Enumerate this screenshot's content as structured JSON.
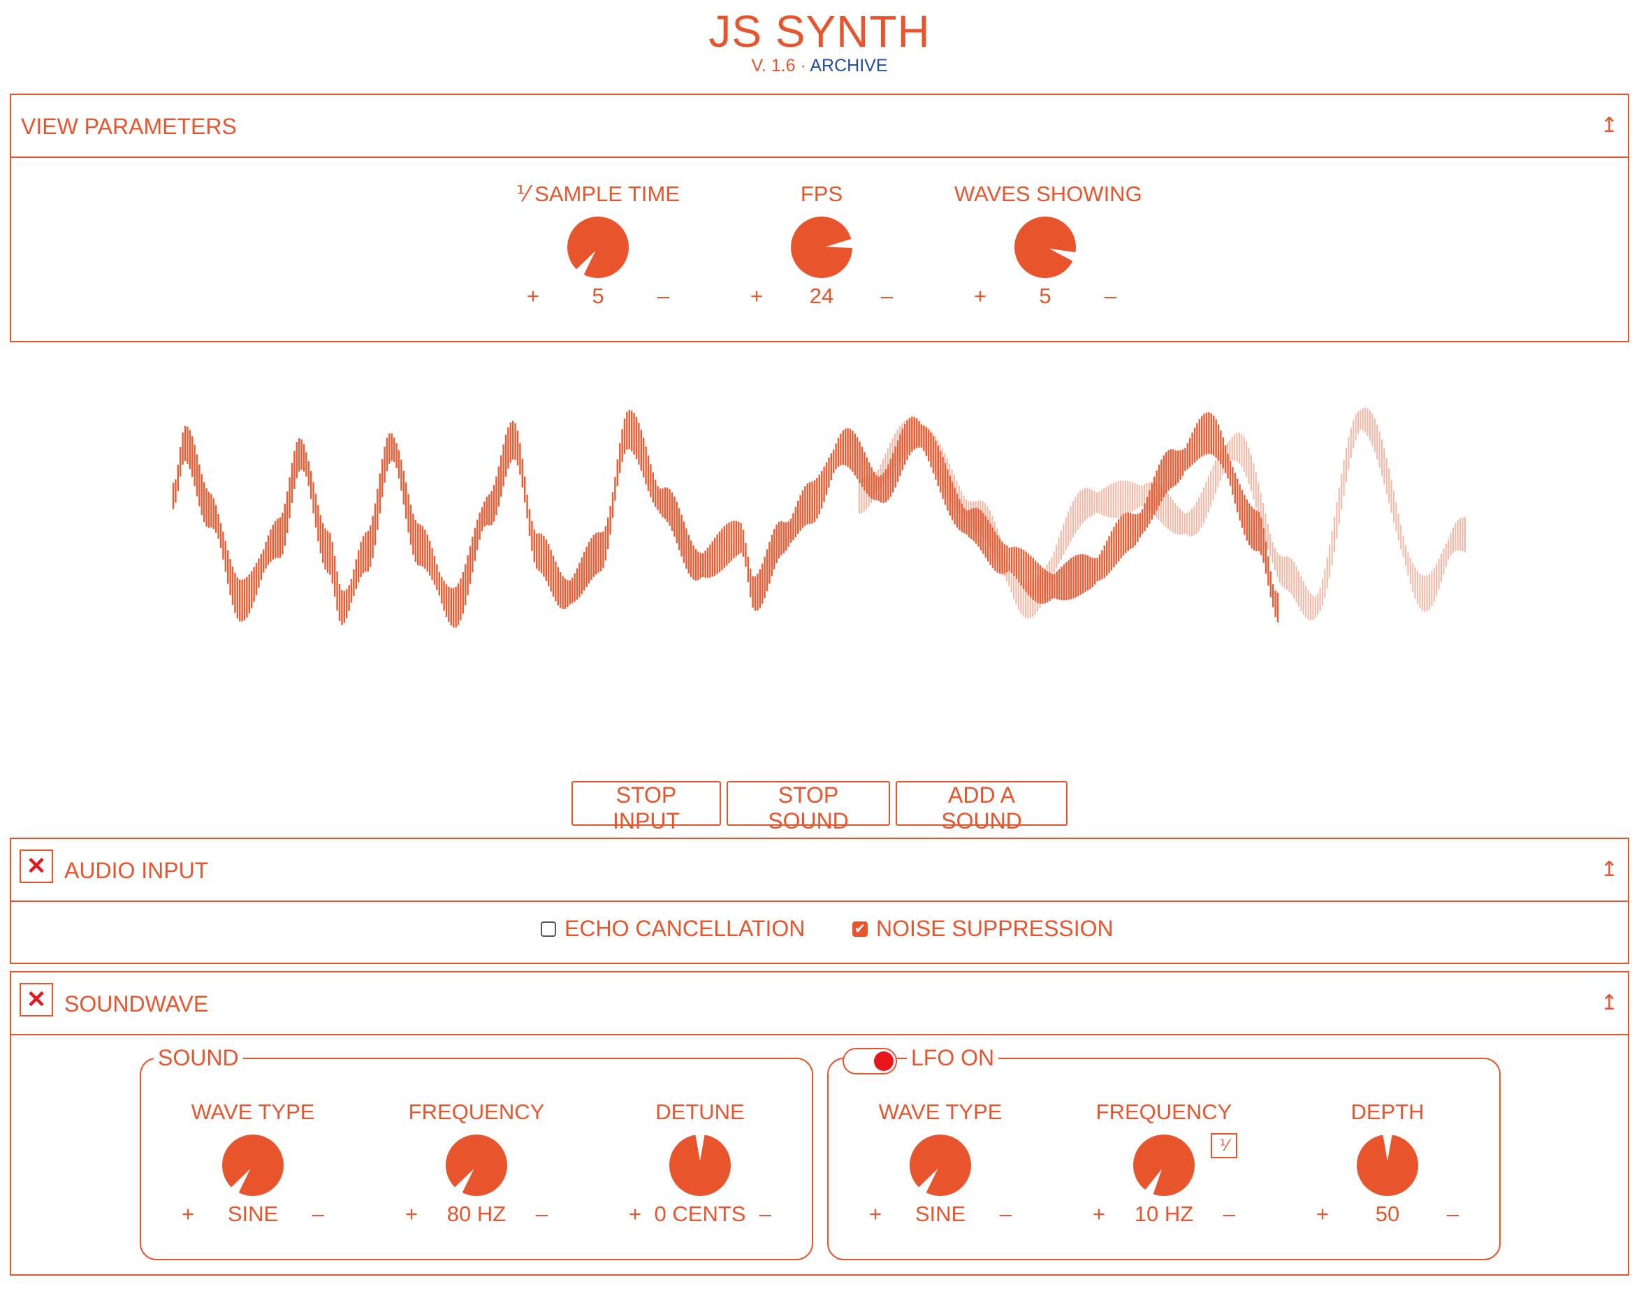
{
  "header": {
    "title": "JS SYNTH",
    "version": "V. 1.6",
    "separator": "·",
    "archive_link": "ARCHIVE"
  },
  "view_parameters": {
    "title": "VIEW PARAMETERS",
    "collapse_icon": "↥",
    "knobs": [
      {
        "label": "⅟ SAMPLE TIME",
        "value": "5",
        "plus": "+",
        "minus": "–",
        "level": 0.1
      },
      {
        "label": "FPS",
        "value": "24",
        "plus": "+",
        "minus": "–",
        "level": 0.73
      },
      {
        "label": "WAVES SHOWING",
        "value": "5",
        "plus": "+",
        "minus": "–",
        "level": 0.8
      }
    ]
  },
  "controls": {
    "stop_input": "STOP INPUT",
    "stop_sound": "STOP SOUND",
    "add_sound": "ADD A SOUND"
  },
  "audio_input": {
    "title": "AUDIO INPUT",
    "remove_icon": "✕",
    "collapse_icon": "↥",
    "echo_cancellation": {
      "label": "ECHO CANCELLATION",
      "checked": false
    },
    "noise_suppression": {
      "label": "NOISE SUPPRESSION",
      "checked": true,
      "check_glyph": "✔"
    }
  },
  "soundwave": {
    "title": "SOUNDWAVE",
    "remove_icon": "✕",
    "collapse_icon": "↥",
    "sound": {
      "legend": "SOUND",
      "knobs": [
        {
          "label": "WAVE TYPE",
          "value": "SINE",
          "plus": "+",
          "minus": "–",
          "level": 0.1
        },
        {
          "label": "FREQUENCY",
          "value": "80 HZ",
          "plus": "+",
          "minus": "–",
          "level": 0.1
        },
        {
          "label": "DETUNE",
          "value": "0 CENTS",
          "plus": "+",
          "minus": "–",
          "level": 0.5
        }
      ]
    },
    "lfo": {
      "legend": "LFO ON",
      "toggle_on": true,
      "reciprocal_button": "⅟",
      "knobs": [
        {
          "label": "WAVE TYPE",
          "value": "SINE",
          "plus": "+",
          "minus": "–",
          "level": 0.1
        },
        {
          "label": "FREQUENCY",
          "value": "10 HZ",
          "plus": "+",
          "minus": "–",
          "level": 0.08
        },
        {
          "label": "DEPTH",
          "value": "50",
          "plus": "+",
          "minus": "–",
          "level": 0.5
        }
      ]
    }
  },
  "colors": {
    "accent": "#e8552d",
    "remove": "#e8161b",
    "link": "#1f4e9a",
    "wave": "#ef5a30"
  }
}
